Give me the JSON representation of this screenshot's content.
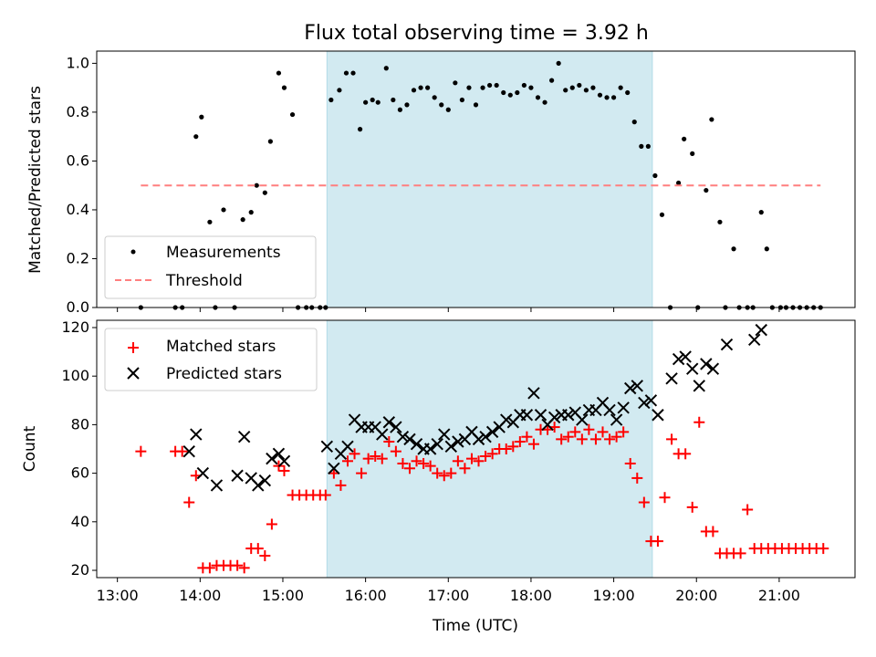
{
  "chart_data": [
    {
      "type": "scatter",
      "title": "Flux total observing time = 3.92 h",
      "xlabel": "",
      "ylabel": "Matched/Predicted stars",
      "ylim": [
        0,
        1.05
      ],
      "xlim": [
        "12:45",
        "21:55"
      ],
      "yticks": [
        "0.0",
        "0.2",
        "0.4",
        "0.6",
        "0.8",
        "1.0"
      ],
      "shaded_window": [
        "15:32",
        "19:28"
      ],
      "legend_position": "lower-left",
      "series": [
        {
          "name": "Measurements",
          "marker": "dot",
          "color": "#000000",
          "x": [
            "13:17",
            "13:42",
            "13:47",
            "13:57",
            "14:01",
            "14:07",
            "14:11",
            "14:17",
            "14:25",
            "14:31",
            "14:37",
            "14:41",
            "14:47",
            "14:51",
            "14:57",
            "15:01",
            "15:07",
            "15:11",
            "15:17",
            "15:21",
            "15:27",
            "15:31",
            "15:35",
            "15:41",
            "15:46",
            "15:51",
            "15:56",
            "16:00",
            "16:05",
            "16:09",
            "16:15",
            "16:20",
            "16:25",
            "16:30",
            "16:35",
            "16:40",
            "16:45",
            "16:50",
            "16:55",
            "17:00",
            "17:05",
            "17:10",
            "17:15",
            "17:20",
            "17:25",
            "17:30",
            "17:35",
            "17:40",
            "17:45",
            "17:50",
            "17:55",
            "18:00",
            "18:05",
            "18:10",
            "18:15",
            "18:20",
            "18:25",
            "18:30",
            "18:35",
            "18:40",
            "18:45",
            "18:50",
            "18:55",
            "19:00",
            "19:05",
            "19:10",
            "19:15",
            "19:20",
            "19:25",
            "19:30",
            "19:35",
            "19:41",
            "19:47",
            "19:51",
            "19:57",
            "20:01",
            "20:07",
            "20:11",
            "20:17",
            "20:21",
            "20:27",
            "20:31",
            "20:37",
            "20:41",
            "20:47",
            "20:51",
            "20:55",
            "21:01",
            "21:05",
            "21:10",
            "21:15",
            "21:20",
            "21:25",
            "21:30"
          ],
          "y": [
            0,
            0,
            0,
            0.7,
            0.78,
            0.35,
            0,
            0.4,
            0,
            0.36,
            0.39,
            0.5,
            0.47,
            0.68,
            0.96,
            0.9,
            0.79,
            0,
            0,
            0,
            0,
            0,
            0.85,
            0.89,
            0.96,
            0.96,
            0.73,
            0.84,
            0.85,
            0.84,
            0.98,
            0.85,
            0.81,
            0.83,
            0.89,
            0.9,
            0.9,
            0.86,
            0.83,
            0.81,
            0.92,
            0.85,
            0.9,
            0.83,
            0.9,
            0.91,
            0.91,
            0.88,
            0.87,
            0.88,
            0.91,
            0.9,
            0.86,
            0.84,
            0.93,
            1.0,
            0.89,
            0.9,
            0.91,
            0.89,
            0.9,
            0.87,
            0.86,
            0.86,
            0.9,
            0.88,
            0.76,
            0.66,
            0.66,
            0.54,
            0.38,
            0,
            0.51,
            0.69,
            0.63,
            0,
            0.48,
            0.77,
            0.35,
            0,
            0.24,
            0,
            0,
            0,
            0.39,
            0.24,
            0,
            0,
            0,
            0,
            0,
            0,
            0,
            0
          ]
        },
        {
          "name": "Threshold",
          "marker": "dashed-line",
          "color": "#ff7f7f",
          "x": [
            "13:17",
            "21:30"
          ],
          "y": [
            0.5,
            0.5
          ]
        }
      ]
    },
    {
      "type": "scatter",
      "title": "",
      "xlabel": "Time (UTC)",
      "ylabel": "Count",
      "ylim": [
        17,
        123
      ],
      "xlim": [
        "12:45",
        "21:55"
      ],
      "yticks": [
        "20",
        "40",
        "60",
        "80",
        "100",
        "120"
      ],
      "xticks": [
        "13:00",
        "14:00",
        "15:00",
        "16:00",
        "17:00",
        "18:00",
        "19:00",
        "20:00",
        "21:00"
      ],
      "shaded_window": [
        "15:32",
        "19:28"
      ],
      "legend_position": "upper-left",
      "series": [
        {
          "name": "Matched stars",
          "marker": "plus",
          "color": "#ff0000",
          "x": [
            "13:17",
            "13:42",
            "13:47",
            "13:52",
            "13:57",
            "14:02",
            "14:07",
            "14:12",
            "14:17",
            "14:22",
            "14:27",
            "14:32",
            "14:37",
            "14:42",
            "14:47",
            "14:52",
            "14:57",
            "15:01",
            "15:07",
            "15:12",
            "15:17",
            "15:22",
            "15:27",
            "15:31",
            "15:37",
            "15:42",
            "15:47",
            "15:52",
            "15:57",
            "16:02",
            "16:07",
            "16:12",
            "16:17",
            "16:22",
            "16:27",
            "16:32",
            "16:37",
            "16:42",
            "16:47",
            "16:52",
            "16:57",
            "17:02",
            "17:07",
            "17:12",
            "17:17",
            "17:22",
            "17:27",
            "17:32",
            "17:37",
            "17:42",
            "17:47",
            "17:52",
            "17:57",
            "18:02",
            "18:07",
            "18:12",
            "18:17",
            "18:22",
            "18:27",
            "18:32",
            "18:37",
            "18:42",
            "18:47",
            "18:52",
            "18:57",
            "19:02",
            "19:07",
            "19:12",
            "19:17",
            "19:22",
            "19:27",
            "19:32",
            "19:37",
            "19:42",
            "19:47",
            "19:52",
            "19:57",
            "20:02",
            "20:07",
            "20:12",
            "20:17",
            "20:22",
            "20:27",
            "20:32",
            "20:37",
            "20:42",
            "20:47",
            "20:52",
            "20:57",
            "21:02",
            "21:07",
            "21:12",
            "21:17",
            "21:22",
            "21:27",
            "21:32"
          ],
          "y": [
            69,
            69,
            69,
            48,
            59,
            21,
            21,
            22,
            22,
            22,
            22,
            21,
            29,
            29,
            26,
            39,
            63,
            61,
            51,
            51,
            51,
            51,
            51,
            51,
            60,
            55,
            65,
            68,
            60,
            66,
            67,
            66,
            73,
            69,
            64,
            62,
            65,
            64,
            63,
            60,
            59,
            60,
            65,
            62,
            66,
            65,
            67,
            68,
            70,
            70,
            71,
            73,
            75,
            72,
            78,
            78,
            79,
            74,
            75,
            77,
            74,
            78,
            74,
            77,
            74,
            75,
            77,
            64,
            58,
            48,
            32,
            32,
            50,
            74,
            68,
            68,
            46,
            81,
            36,
            36,
            27,
            27,
            27,
            27,
            45,
            29,
            29,
            29,
            29,
            29,
            29,
            29,
            29,
            29,
            29,
            29
          ]
        },
        {
          "name": "Predicted stars",
          "marker": "x",
          "color": "#000000",
          "x": [
            "13:52",
            "13:57",
            "14:02",
            "14:12",
            "14:27",
            "14:32",
            "14:37",
            "14:42",
            "14:47",
            "14:52",
            "14:57",
            "15:01",
            "15:32",
            "15:37",
            "15:42",
            "15:47",
            "15:52",
            "15:57",
            "16:02",
            "16:07",
            "16:12",
            "16:17",
            "16:22",
            "16:27",
            "16:32",
            "16:37",
            "16:42",
            "16:47",
            "16:52",
            "16:57",
            "17:02",
            "17:07",
            "17:12",
            "17:17",
            "17:22",
            "17:27",
            "17:32",
            "17:37",
            "17:42",
            "17:47",
            "17:52",
            "17:57",
            "18:02",
            "18:07",
            "18:12",
            "18:17",
            "18:22",
            "18:27",
            "18:32",
            "18:37",
            "18:42",
            "18:47",
            "18:52",
            "18:57",
            "19:02",
            "19:07",
            "19:12",
            "19:17",
            "19:22",
            "19:27",
            "19:32",
            "19:42",
            "19:47",
            "19:52",
            "19:57",
            "20:02",
            "20:07",
            "20:12",
            "20:22",
            "20:42",
            "20:47"
          ],
          "y": [
            69,
            76,
            60,
            55,
            59,
            75,
            58,
            55,
            57,
            66,
            68,
            65,
            71,
            62,
            68,
            71,
            82,
            79,
            79,
            79,
            76,
            81,
            79,
            75,
            74,
            72,
            70,
            70,
            72,
            76,
            71,
            73,
            74,
            77,
            74,
            75,
            77,
            79,
            82,
            81,
            84,
            84,
            93,
            84,
            80,
            83,
            84,
            84,
            85,
            82,
            86,
            86,
            89,
            86,
            82,
            87,
            95,
            96,
            89,
            90,
            84,
            99,
            107,
            108,
            103,
            96,
            105,
            103,
            113,
            115,
            119
          ]
        }
      ]
    }
  ]
}
